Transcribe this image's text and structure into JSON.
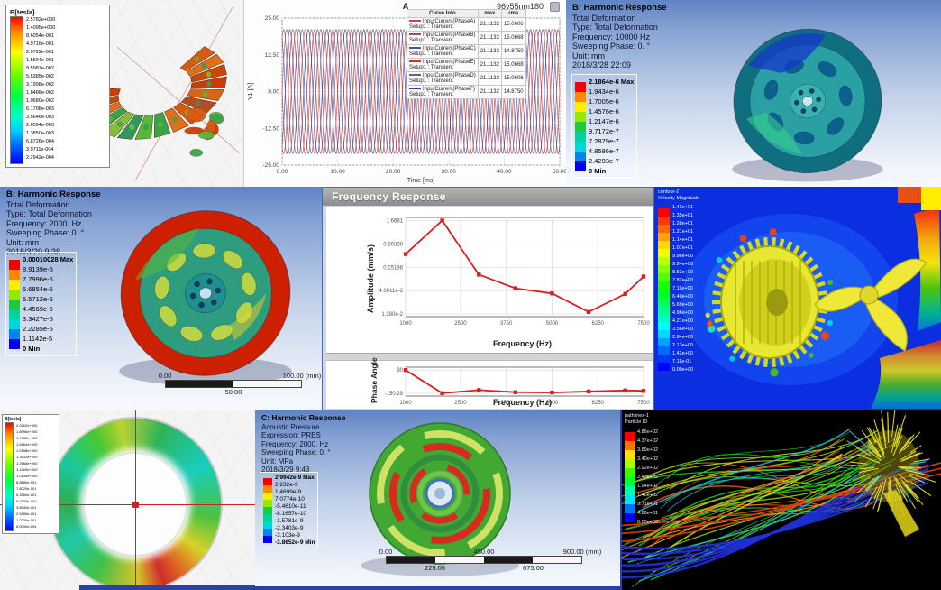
{
  "chart_data": [
    {
      "id": "transient_currents",
      "type": "line",
      "title": "A",
      "subtitle": "96v55nm180",
      "xlabel": "Time [ms]",
      "ylabel": "Y1 [A]",
      "xlim": [
        0,
        50
      ],
      "ylim": [
        -25,
        25
      ],
      "x_ticks": [
        "0.00",
        "10.00",
        "20.00",
        "30.00",
        "40.00",
        "50.00"
      ],
      "y_ticks": [
        "25.00",
        "12.50",
        "0.00",
        "-12.50",
        "-25.00"
      ],
      "amplitude": 21.1132,
      "cycles": 15,
      "legend_header": [
        "Curve Info",
        "max",
        "rms"
      ],
      "series": [
        {
          "name": "InputCurrent(PhaseA)",
          "setup": "Setup1 : Transient",
          "max": "21.1132",
          "rms": "15.0606",
          "color": "#d04545",
          "phase": 0
        },
        {
          "name": "InputCurrent(PhaseB)",
          "setup": "Setup1 : Transient",
          "max": "21.1132",
          "rms": "15.0668",
          "color": "#9a5050",
          "phase": -2.094
        },
        {
          "name": "InputCurrent(PhaseC)",
          "setup": "Setup1 : Transient",
          "max": "21.1132",
          "rms": "14.8750",
          "color": "#4a52a8",
          "phase": 2.094
        },
        {
          "name": "InputCurrent(PhaseE)",
          "setup": "Setup1 : Transient",
          "max": "21.1132",
          "rms": "15.0668",
          "color": "#d03030",
          "phase": 3.1416
        },
        {
          "name": "InputCurrent(PhaseD)",
          "setup": "Setup1 : Transient",
          "max": "21.1132",
          "rms": "15.0606",
          "color": "#7a5a78",
          "phase": 1.047
        },
        {
          "name": "InputCurrent(PhaseF)",
          "setup": "Setup1 : Transient",
          "max": "21.1132",
          "rms": "14.8750",
          "color": "#2f3fae",
          "phase": -1.047
        }
      ]
    },
    {
      "id": "frequency_response_amplitude",
      "type": "line",
      "ylabel": "Amplitude (mm/s)",
      "xlabel": "Frequency (Hz)",
      "yscale": "log",
      "x": [
        1000,
        2000,
        3000,
        4000,
        5000,
        6000,
        7000,
        7500
      ],
      "y": [
        0.3,
        1.6681,
        0.105,
        0.052,
        0.04,
        0.0155,
        0.039,
        0.095
      ],
      "xlim": [
        1000,
        7500
      ],
      "y_ticks": [
        "1.6681",
        "0.50338",
        "0.15198",
        "4.6011e-2",
        "1.390e-2"
      ],
      "x_ticks": [
        "1000",
        "2500",
        "3750",
        "5000",
        "6250",
        "7500"
      ],
      "color": "#d42020",
      "legend_position": "none",
      "grid": true
    },
    {
      "id": "frequency_response_phase",
      "type": "line",
      "ylabel": "Phase Angle",
      "xlabel": "Frequency (Hz)",
      "x": [
        1000,
        2000,
        3000,
        4000,
        5000,
        6000,
        7000,
        7500
      ],
      "y": [
        90,
        -150.29,
        -118,
        -140,
        -143,
        -132,
        -122,
        -126
      ],
      "xlim": [
        1000,
        7500
      ],
      "ylim": [
        -180,
        120
      ],
      "y_ticks": [
        "90",
        "-150.29"
      ],
      "x_ticks": [
        "1000",
        "2500",
        "3750",
        "5000",
        "6250",
        "7500"
      ],
      "color": "#d42020",
      "grid": true
    }
  ],
  "panels": {
    "maxwell_torus": {
      "legend_title": "B[tesla]",
      "values": [
        "2.5782e+000",
        "1.4095e+000",
        "8.6054e-001",
        "4.9716e-001",
        "2.0722e-001",
        "1.5594e-001",
        "9.5987e-002",
        "5.5385e-002",
        "3.1998e-002",
        "1.8486e-002",
        "1.0680e-002",
        "6.1708e-003",
        "3.5646e-003",
        "2.8594e-003",
        "1.3850e-003",
        "6.8726e-004",
        "3.9711e-004",
        "2.2942e-004"
      ]
    },
    "harmonic_10000": {
      "title": "B: Harmonic Response",
      "lines": [
        "Total Deformation",
        "Type: Total Deformation",
        "Frequency: 10000 Hz",
        "Sweeping Phase: 0. °",
        "Unit: mm",
        "2018/3/28 22:09"
      ],
      "colorbar": {
        "values": [
          "2.1864e-6 Max",
          "1.9434e-6",
          "1.7005e-6",
          "1.4576e-6",
          "1.2147e-6",
          "9.7172e-7",
          "7.2879e-7",
          "4.8586e-7",
          "2.4293e-7",
          "0 Min"
        ]
      }
    },
    "harmonic_2000": {
      "title": "B: Harmonic Response",
      "lines": [
        "Total Deformation",
        "Type: Total Deformation",
        "Frequency: 2000. Hz",
        "Sweeping Phase: 0. °",
        "Unit: mm",
        "2018/3/29 9:38"
      ],
      "colorbar": {
        "values": [
          "0.00010028 Max",
          "8.9139e-5",
          "7.7996e-5",
          "6.6854e-5",
          "5.5712e-5",
          "4.4569e-5",
          "3.3427e-5",
          "2.2285e-5",
          "1.1142e-5",
          "0 Min"
        ]
      },
      "ruler": {
        "top": [
          [
            "0.00",
            0
          ],
          [
            "100.00 (mm)",
            1
          ]
        ],
        "bottom": [
          [
            "50.00",
            0.5
          ]
        ],
        "segments": 2
      }
    },
    "freq_window": {
      "title": "Frequency Response"
    },
    "cfd_velocity": {
      "legend_header": [
        "contour-2",
        "Velocity Magnitude"
      ],
      "values": [
        "1.42e+01",
        "1.35e+01",
        "1.28e+01",
        "1.21e+01",
        "1.14e+01",
        "1.07e+01",
        "9.96e+00",
        "9.24e+00",
        "8.53e+00",
        "7.82e+00",
        "7.11e+00",
        "6.40e+00",
        "5.69e+00",
        "4.98e+00",
        "4.27e+00",
        "3.56e+00",
        "2.84e+00",
        "2.13e+00",
        "1.42e+00",
        "7.11e-01",
        "0.00e+00"
      ]
    },
    "maxwell_stator": {
      "legend_title": "B[tesla]",
      "values": [
        "2.0262e+000",
        "1.8996e+000",
        "1.7730e+000",
        "1.6464e+000",
        "1.5198e+000",
        "1.3932e+000",
        "1.2666e+000",
        "1.1400e+000",
        "1.0134e+000",
        "8.8680e-001",
        "7.6020e-001",
        "6.3360e-001",
        "5.0700e-001",
        "3.8040e-001",
        "2.5380e-001",
        "1.2720e-001",
        "6.0000e-004"
      ]
    },
    "acoustic": {
      "title": "C: Harmonic Response",
      "lines": [
        "Acoustic Pressure",
        "Expression: PRES",
        "Frequency: 2000. Hz",
        "Sweeping Phase: 0. °",
        "Unit: MPa",
        "2018/3/29 9:43"
      ],
      "colorbar": {
        "values": [
          "2.9942e-9 Max",
          "2.232e-9",
          "1.4699e-9",
          "7.0774e-10",
          "-5.4610e-11",
          "-8.1657e-10",
          "-1.5781e-9",
          "-2.3403e-9",
          "-3.103e-9",
          "-3.8652e-9 Min"
        ]
      },
      "ruler": {
        "top": [
          [
            "0.00",
            0
          ],
          [
            "450.00",
            0.5
          ],
          [
            "900.00 (mm)",
            1
          ]
        ],
        "bottom": [
          [
            "225.00",
            0.25
          ],
          [
            "675.00",
            0.75
          ]
        ],
        "segments": 4
      }
    },
    "streamlines": {
      "legend_header": [
        "pathlines-1",
        "Particle ID"
      ],
      "values": [
        "4.86e+02",
        "4.37e+02",
        "3.89e+02",
        "3.40e+02",
        "2.92e+02",
        "2.43e+02",
        "1.94e+02",
        "1.46e+02",
        "9.71e+01",
        "4.86e+01",
        "0.00e+00"
      ]
    }
  },
  "colors": {
    "ansys_bands": [
      "#f00000",
      "#ff8800",
      "#ffee00",
      "#99e600",
      "#1fc93f",
      "#00d2a0",
      "#00d8d8",
      "#0084f0",
      "#0000e8"
    ],
    "maxwell_gradient": "linear-gradient(180deg,#ff0000 0%,#ff8800 10%,#ffff00 24%,#66ff00 40%,#00ff44 54%,#00ffcc 68%,#00ccff 78%,#0066ff 88%,#0000ff 100%)",
    "curve_red": "#d42020"
  }
}
